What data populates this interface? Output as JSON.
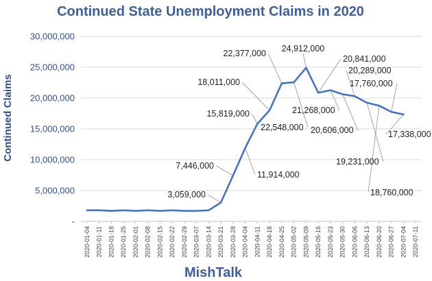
{
  "chart_data": {
    "type": "line",
    "title": "Continued State Unemployment Claims in 2020",
    "footer": "MishTalk",
    "xlabel": "",
    "ylabel": "Continued  Claims",
    "ylim": [
      0,
      30000000
    ],
    "yticks": [
      0,
      5000000,
      10000000,
      15000000,
      20000000,
      25000000,
      30000000
    ],
    "ytick_labels": [
      "-",
      "5,000,000",
      "10,000,000",
      "15,000,000",
      "20,000,000",
      "25,000,000",
      "30,000,000"
    ],
    "grid": true,
    "legend": "none",
    "line_color": "#4472c4",
    "x": [
      "2020-01-04",
      "2020-01-11",
      "2020-01-18",
      "2020-01-25",
      "2020-02-01",
      "2020-02-08",
      "2020-02-15",
      "2020-02-22",
      "2020-02-29",
      "2020-03-07",
      "2020-03-14",
      "2020-03-21",
      "2020-03-28",
      "2020-04-04",
      "2020-04-11",
      "2020-04-18",
      "2020-04-25",
      "2020-05-02",
      "2020-05-09",
      "2020-05-16",
      "2020-05-23",
      "2020-05-30",
      "2020-06-06",
      "2020-06-13",
      "2020-06-20",
      "2020-06-27",
      "2020-07-04",
      "2020-07-11"
    ],
    "values": [
      1800000,
      1800000,
      1700000,
      1800000,
      1700000,
      1800000,
      1700000,
      1800000,
      1700000,
      1700000,
      1800000,
      3059000,
      7446000,
      11914000,
      15819000,
      18011000,
      22377000,
      22548000,
      24912000,
      20841000,
      21268000,
      20606000,
      20289000,
      19231000,
      18760000,
      17760000,
      17338000,
      null
    ],
    "data_labels": [
      {
        "index": 11,
        "text": "3,059,000"
      },
      {
        "index": 12,
        "text": "7,446,000"
      },
      {
        "index": 13,
        "text": "11,914,000"
      },
      {
        "index": 14,
        "text": "15,819,000"
      },
      {
        "index": 15,
        "text": "18,011,000"
      },
      {
        "index": 16,
        "text": "22,377,000"
      },
      {
        "index": 17,
        "text": "22,548,000"
      },
      {
        "index": 18,
        "text": "24,912,000"
      },
      {
        "index": 19,
        "text": "20,841,000"
      },
      {
        "index": 20,
        "text": "21,268,000"
      },
      {
        "index": 21,
        "text": "20,606,000"
      },
      {
        "index": 22,
        "text": "20,289,000"
      },
      {
        "index": 23,
        "text": "19,231,000"
      },
      {
        "index": 24,
        "text": "18,760,000"
      },
      {
        "index": 25,
        "text": "17,760,000"
      },
      {
        "index": 26,
        "text": "17,338,000"
      }
    ]
  }
}
